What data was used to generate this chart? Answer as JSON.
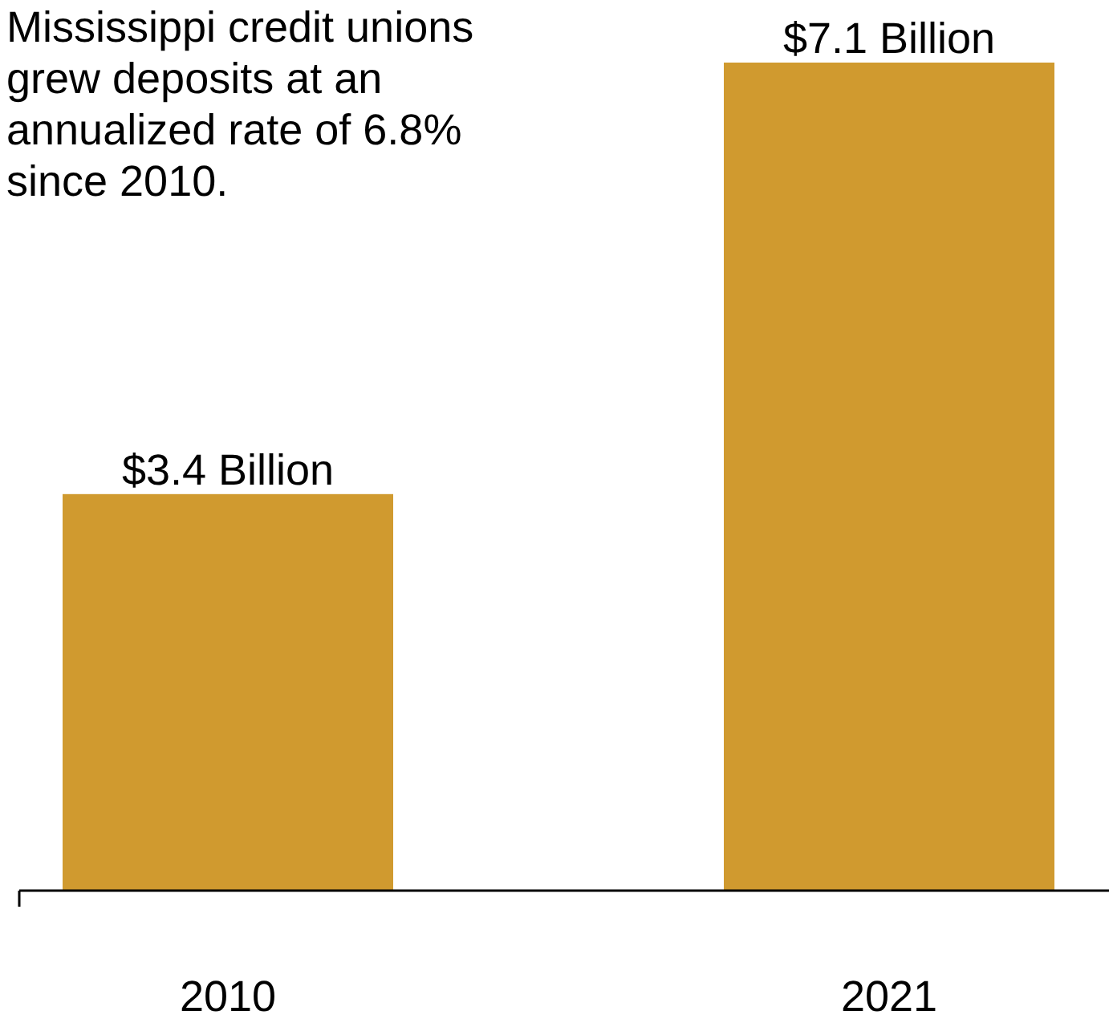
{
  "chart_data": {
    "type": "bar",
    "title": "Mississippi credit unions grew deposits at an annualized rate of 6.8% since 2010.",
    "categories": [
      "2010",
      "2021"
    ],
    "values": [
      3.4,
      7.1
    ],
    "value_labels": [
      "$3.4 Billion",
      "$7.1 Billion"
    ],
    "color": "#d09a2f",
    "ylim": [
      0,
      7.1
    ],
    "tick_labels": "x"
  }
}
